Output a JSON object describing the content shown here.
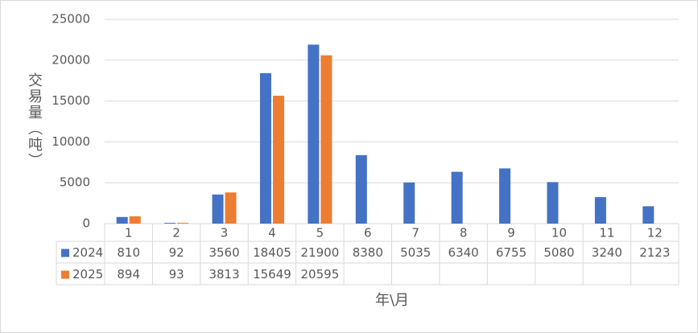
{
  "chart_data": {
    "type": "bar",
    "x_label": "年\\月",
    "y_label": "交易量（吨）",
    "categories": [
      "1",
      "2",
      "3",
      "4",
      "5",
      "6",
      "7",
      "8",
      "9",
      "10",
      "11",
      "12"
    ],
    "series": [
      {
        "name": "2024",
        "color": "#4472c4",
        "values": [
          810,
          92,
          3560,
          18405,
          21900,
          8380,
          5035,
          6340,
          6755,
          5080,
          3240,
          2123
        ]
      },
      {
        "name": "2025",
        "color": "#ed7d31",
        "values": [
          894,
          93,
          3813,
          15649,
          20595,
          null,
          null,
          null,
          null,
          null,
          null,
          null
        ]
      }
    ],
    "ylim": [
      0,
      25000
    ],
    "yticks": [
      0,
      5000,
      10000,
      15000,
      20000,
      25000
    ],
    "grid": true
  }
}
